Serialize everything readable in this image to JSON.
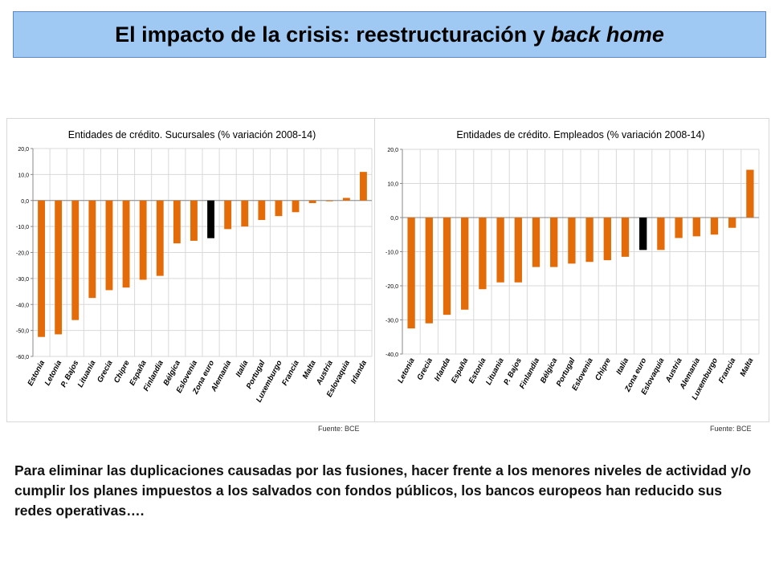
{
  "slide": {
    "title_main": "El impacto de la crisis: reestructuración y",
    "title_italic": "back home",
    "footer": "Para eliminar las duplicaciones causadas por las fusiones, hacer frente a los menores niveles de actividad y/o cumplir los planes impuestos a los salvados con fondos públicos, los bancos europeos han reducido sus redes operativas…."
  },
  "colors": {
    "bar": "#e36c09",
    "highlight": "#000000",
    "grid": "#d9d9d9"
  },
  "chart_data": [
    {
      "type": "bar",
      "title": "Entidades de crédito. Sucursales (% variación 2008-14)",
      "source": "Fuente: BCE",
      "xlabel": "",
      "ylabel": "",
      "ylim": [
        -60,
        20
      ],
      "yticks": [
        "20,0",
        "10,0",
        "0,0",
        "-10,0",
        "-20,0",
        "-30,0",
        "-40,0",
        "-50,0",
        "-60,0"
      ],
      "grid": true,
      "legend": "none",
      "highlight_category": "Zona euro",
      "categories": [
        "Estonia",
        "Letonia",
        "P. Bajos",
        "Lituania",
        "Grecia",
        "Chipre",
        "España",
        "Finlandia",
        "Bélgica",
        "Eslovenia",
        "Zona euro",
        "Alemania",
        "Italia",
        "Portugal",
        "Luxemburgo",
        "Francia",
        "Malta",
        "Austria",
        "Eslovaquia",
        "Irlanda"
      ],
      "values": [
        -52.5,
        -51.5,
        -46.0,
        -37.5,
        -34.5,
        -33.5,
        -30.5,
        -29.0,
        -16.5,
        -15.5,
        -14.5,
        -11.0,
        -10.0,
        -7.5,
        -6.0,
        -4.5,
        -1.0,
        -0.3,
        1.0,
        11.0
      ]
    },
    {
      "type": "bar",
      "title": "Entidades de crédito. Empleados (% variación 2008-14)",
      "source": "Fuente: BCE",
      "xlabel": "",
      "ylabel": "",
      "ylim": [
        -40,
        20
      ],
      "yticks": [
        "20,0",
        "10,0",
        "0,0",
        "-10,0",
        "-20,0",
        "-30,0",
        "-40,0"
      ],
      "grid": true,
      "legend": "none",
      "highlight_category": "Zona euro",
      "categories": [
        "Letonia",
        "Grecia",
        "Irlanda",
        "España",
        "Estonia",
        "Lituania",
        "P. Bajos",
        "Finlandia",
        "Bélgica",
        "Portugal",
        "Eslovenia",
        "Chipre",
        "Italia",
        "Zona euro",
        "Eslovaquia",
        "Austria",
        "Alemania",
        "Luxemburgo",
        "Francia",
        "Malta"
      ],
      "values": [
        -32.5,
        -31.0,
        -28.5,
        -27.0,
        -21.0,
        -19.0,
        -19.0,
        -14.5,
        -14.5,
        -13.5,
        -13.0,
        -12.5,
        -11.5,
        -9.5,
        -9.5,
        -6.0,
        -5.5,
        -5.0,
        -3.0,
        14.0
      ]
    }
  ]
}
